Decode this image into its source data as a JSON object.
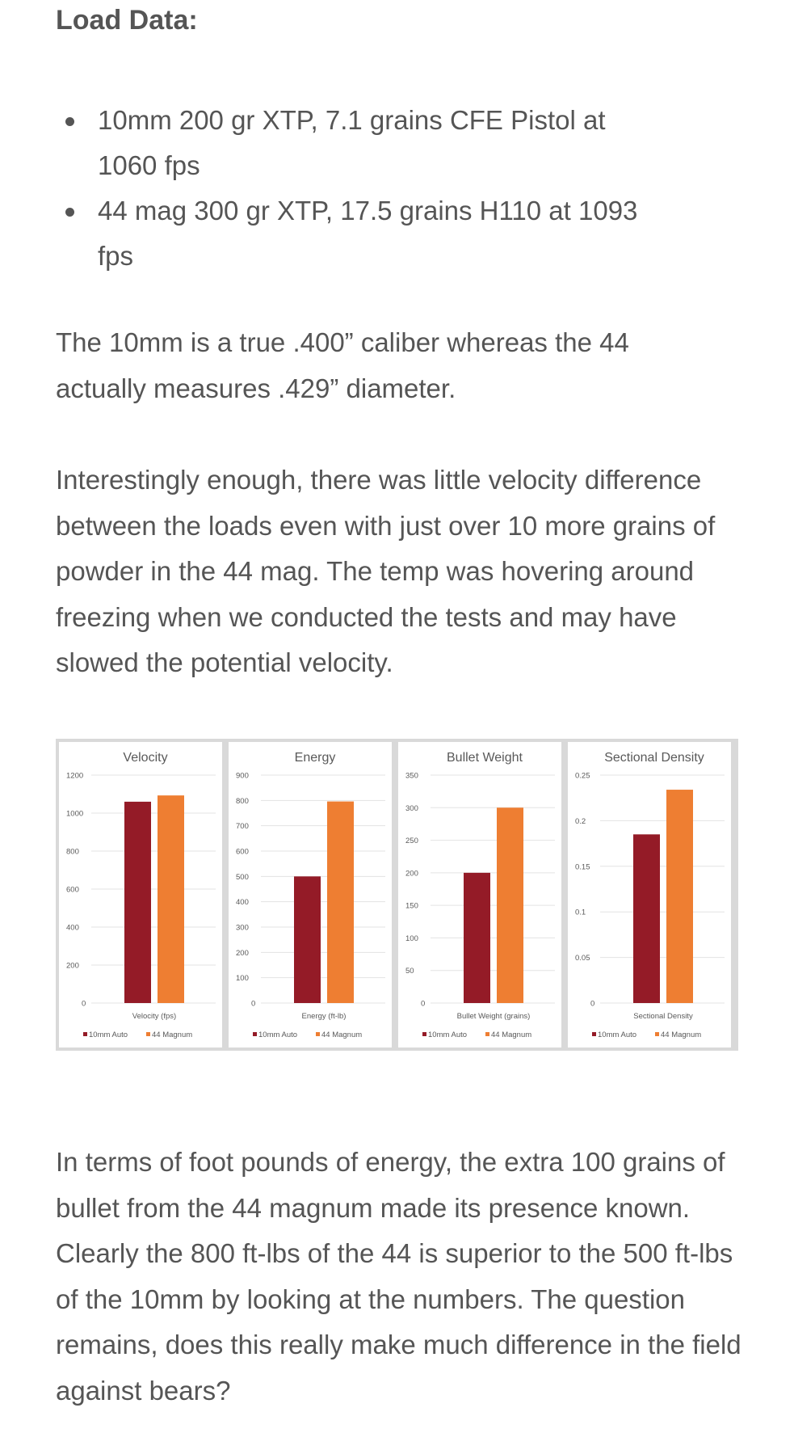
{
  "heading": "Load Data:",
  "bullets": [
    "10mm 200 gr XTP, 7.1 grains CFE Pistol at 1060 fps",
    "44 mag 300 gr XTP, 17.5 grains H110 at 1093 fps"
  ],
  "paragraphs": {
    "p1": "The 10mm is a true .400” caliber whereas the 44 actually measures .429”  diameter.",
    "p2": "Interestingly enough, there was little velocity difference between the loads even with just over 10 more grains of powder in the 44 mag. The temp was hovering around freezing when we conducted the tests and may have slowed the potential velocity.",
    "p3": "In terms of foot pounds of energy, the extra 100 grains of bullet from the 44 magnum made its presence known. Clearly the 800 ft-lbs of the 44 is superior to the 500 ft-lbs of the 10mm by looking at the numbers. The question remains, does this really make much difference in the field against bears?"
  },
  "colors": {
    "series_10mm": "#941b27",
    "series_44": "#ee7e32",
    "text": "#555555"
  },
  "chart_data": [
    {
      "type": "bar",
      "title": "Velocity",
      "categories": [
        "Velocity (fps)"
      ],
      "series": [
        {
          "name": "10mm Auto",
          "values": [
            1060
          ]
        },
        {
          "name": "44 Magnum",
          "values": [
            1093
          ]
        }
      ],
      "ylim": [
        0,
        1200
      ],
      "yticks": [
        0,
        200,
        400,
        600,
        800,
        1000,
        1200
      ],
      "ytick_labels": [
        "0",
        "200",
        "400",
        "600",
        "800",
        "1000",
        "1200"
      ],
      "grid": true,
      "legend": "bottom"
    },
    {
      "type": "bar",
      "title": "Energy",
      "categories": [
        "Energy (ft-lb)"
      ],
      "series": [
        {
          "name": "10mm Auto",
          "values": [
            500
          ]
        },
        {
          "name": "44 Magnum",
          "values": [
            796
          ]
        }
      ],
      "ylim": [
        0,
        900
      ],
      "yticks": [
        0,
        100,
        200,
        300,
        400,
        500,
        600,
        700,
        800,
        900
      ],
      "ytick_labels": [
        "0",
        "100",
        "200",
        "300",
        "400",
        "500",
        "600",
        "700",
        "800",
        "900"
      ],
      "grid": true,
      "legend": "bottom"
    },
    {
      "type": "bar",
      "title": "Bullet Weight",
      "categories": [
        "Bullet Weight (grains)"
      ],
      "series": [
        {
          "name": "10mm Auto",
          "values": [
            200
          ]
        },
        {
          "name": "44 Magnum",
          "values": [
            300
          ]
        }
      ],
      "ylim": [
        0,
        350
      ],
      "yticks": [
        0,
        50,
        100,
        150,
        200,
        250,
        300,
        350
      ],
      "ytick_labels": [
        "0",
        "50",
        "100",
        "150",
        "200",
        "250",
        "300",
        "350"
      ],
      "grid": true,
      "legend": "bottom"
    },
    {
      "type": "bar",
      "title": "Sectional Density",
      "categories": [
        "Sectional Density"
      ],
      "series": [
        {
          "name": "10mm Auto",
          "values": [
            0.185
          ]
        },
        {
          "name": "44 Magnum",
          "values": [
            0.234
          ]
        }
      ],
      "ylim": [
        0,
        0.25
      ],
      "yticks": [
        0,
        0.05,
        0.1,
        0.15,
        0.2,
        0.25
      ],
      "ytick_labels": [
        "0",
        "0.05",
        "0.1",
        "0.15",
        "0.2",
        "0.25"
      ],
      "grid": true,
      "legend": "bottom"
    }
  ]
}
